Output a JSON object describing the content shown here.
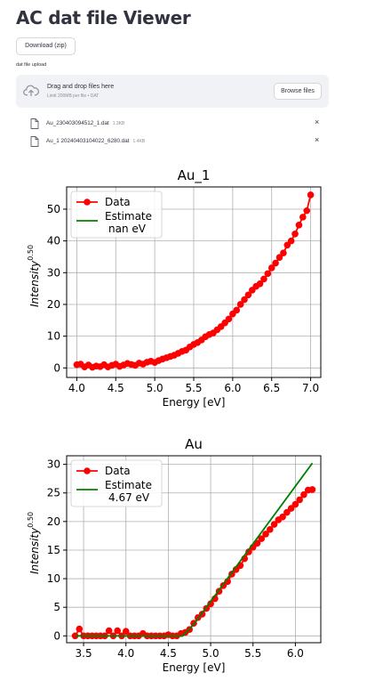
{
  "app": {
    "title": "AC dat file Viewer"
  },
  "download_button": {
    "label": "Download (zip)"
  },
  "uploader": {
    "label": "dat file upload",
    "drop_title": "Drag and drop files here",
    "drop_subtitle": "Limit 200MB per file • DAT",
    "browse_label": "Browse files",
    "files": [
      {
        "name": "Au_230403094512_1.dat",
        "size": "1.3KB"
      },
      {
        "name": "Au_1 20240403104022_6280.dat",
        "size": "1.4KB"
      }
    ],
    "remove_symbol": "×"
  },
  "colors": {
    "data": "#ff0000",
    "estimate": "#008000",
    "accent": "#31333f"
  },
  "chart_data": [
    {
      "type": "scatter",
      "title": "Au_1",
      "xlabel": "Energy [eV]",
      "ylabel": "Intensity",
      "ylabel_sup": "0.50",
      "xlim": [
        3.87,
        7.13
      ],
      "ylim": [
        -3,
        57
      ],
      "xticks": [
        4.0,
        4.5,
        5.0,
        5.5,
        6.0,
        6.5,
        7.0
      ],
      "yticks": [
        0,
        10,
        20,
        30,
        40,
        50
      ],
      "legend": {
        "location": "top-left",
        "data_label": "Data",
        "estimate_label": "Estimate",
        "estimate_value": "nan eV"
      },
      "series": [
        {
          "name": "Data",
          "x": [
            4.0,
            4.05,
            4.1,
            4.15,
            4.2,
            4.25,
            4.3,
            4.35,
            4.4,
            4.45,
            4.5,
            4.55,
            4.6,
            4.65,
            4.7,
            4.75,
            4.8,
            4.85,
            4.9,
            4.95,
            5.0,
            5.05,
            5.1,
            5.15,
            5.2,
            5.25,
            5.3,
            5.35,
            5.4,
            5.45,
            5.5,
            5.55,
            5.6,
            5.65,
            5.7,
            5.75,
            5.8,
            5.85,
            5.9,
            5.95,
            6.0,
            6.05,
            6.1,
            6.15,
            6.2,
            6.25,
            6.3,
            6.35,
            6.4,
            6.45,
            6.5,
            6.55,
            6.6,
            6.65,
            6.7,
            6.75,
            6.8,
            6.85,
            6.9,
            6.95,
            7.0
          ],
          "y": [
            1.0,
            1.2,
            0.3,
            0.9,
            0.2,
            0.6,
            0.4,
            1.0,
            0.3,
            0.8,
            1.2,
            0.5,
            0.9,
            1.4,
            1.1,
            0.8,
            1.5,
            1.2,
            1.8,
            2.1,
            1.7,
            2.3,
            2.8,
            3.2,
            3.6,
            4.0,
            4.6,
            5.2,
            5.6,
            6.6,
            7.4,
            8.0,
            8.8,
            9.8,
            10.5,
            11.0,
            12.0,
            13.0,
            14.2,
            15.4,
            17.0,
            18.2,
            20.0,
            21.5,
            23.0,
            24.5,
            25.7,
            26.5,
            28.0,
            29.7,
            31.5,
            33.0,
            34.8,
            36.2,
            38.7,
            40.0,
            42.2,
            45.0,
            47.5,
            49.5,
            54.5
          ]
        },
        {
          "name": "Estimate",
          "x": [],
          "y": []
        }
      ]
    },
    {
      "type": "scatter",
      "title": "Au",
      "xlabel": "Energy [eV]",
      "ylabel": "Intensity",
      "ylabel_sup": "0.50",
      "xlim": [
        3.3,
        6.3
      ],
      "ylim": [
        -1.2,
        31.5
      ],
      "xticks": [
        3.5,
        4.0,
        4.5,
        5.0,
        5.5,
        6.0
      ],
      "yticks": [
        0,
        5,
        10,
        15,
        20,
        25,
        30
      ],
      "legend": {
        "location": "top-left",
        "data_label": "Data",
        "estimate_label": "Estimate",
        "estimate_value": "4.67 eV"
      },
      "series": [
        {
          "name": "Data",
          "x": [
            3.4,
            3.45,
            3.5,
            3.55,
            3.6,
            3.65,
            3.7,
            3.75,
            3.8,
            3.85,
            3.9,
            3.95,
            4.0,
            4.05,
            4.1,
            4.15,
            4.2,
            4.25,
            4.3,
            4.35,
            4.4,
            4.45,
            4.5,
            4.55,
            4.6,
            4.65,
            4.7,
            4.75,
            4.8,
            4.85,
            4.9,
            4.95,
            5.0,
            5.05,
            5.1,
            5.15,
            5.2,
            5.25,
            5.3,
            5.35,
            5.4,
            5.45,
            5.5,
            5.55,
            5.6,
            5.65,
            5.7,
            5.75,
            5.8,
            5.85,
            5.9,
            5.95,
            6.0,
            6.05,
            6.1,
            6.15,
            6.2
          ],
          "y": [
            0,
            1.2,
            0,
            0,
            0,
            0,
            0,
            0,
            0.9,
            0,
            0.9,
            0,
            0.8,
            0,
            0,
            0,
            0.4,
            0,
            0,
            0,
            0,
            0,
            0.2,
            0,
            0,
            0.4,
            0.6,
            1.1,
            2.2,
            3.2,
            3.8,
            4.8,
            5.6,
            6.5,
            7.8,
            8.8,
            9.5,
            10.8,
            11.6,
            12.3,
            13.5,
            14.7,
            15.5,
            16.2,
            17.0,
            17.8,
            18.6,
            19.5,
            20.3,
            20.8,
            21.6,
            22.3,
            23.0,
            23.8,
            24.7,
            25.5,
            25.6
          ]
        },
        {
          "name": "Estimate",
          "x": [
            3.4,
            4.67,
            4.8,
            6.2
          ],
          "y": [
            0,
            0,
            2.0,
            30.2
          ]
        }
      ]
    }
  ]
}
